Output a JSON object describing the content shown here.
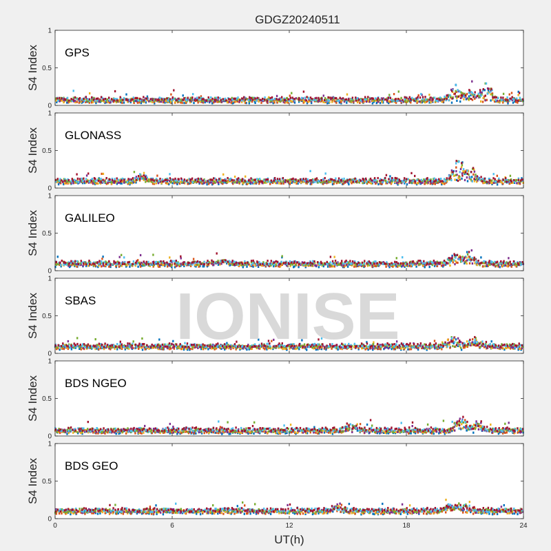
{
  "figure": {
    "title": "GDGZ20240511",
    "xlabel": "UT(h)",
    "ylabel": "S4 Index",
    "watermark": "IONISE",
    "background": "#f0f0f0",
    "axes_background": "#ffffff",
    "series_colors": [
      "#0072BD",
      "#D95319",
      "#EDB120",
      "#7E2F8E",
      "#77AC30",
      "#4DBEEE",
      "#A2142F"
    ]
  },
  "chart_data": [
    {
      "type": "scatter",
      "panel": "GPS",
      "xlim": [
        0,
        24
      ],
      "ylim": [
        0,
        1
      ],
      "xticks": [
        0,
        6,
        12,
        18,
        24
      ],
      "yticks": [
        0,
        0.5,
        1
      ],
      "ytick_labels": [
        "0",
        "0.5",
        "1"
      ],
      "grid": false,
      "baseline": 0.07,
      "activity": [
        {
          "x": 20.5,
          "peak": 0.28
        },
        {
          "x": 21.3,
          "peak": 0.22
        },
        {
          "x": 22.1,
          "peak": 0.3
        }
      ]
    },
    {
      "type": "scatter",
      "panel": "GLONASS",
      "xlim": [
        0,
        24
      ],
      "ylim": [
        0,
        1
      ],
      "xticks": [
        0,
        6,
        12,
        18,
        24
      ],
      "yticks": [
        0,
        0.5,
        1
      ],
      "ytick_labels": [
        "0",
        "0.5",
        "1"
      ],
      "grid": false,
      "baseline": 0.09,
      "activity": [
        {
          "x": 20.6,
          "peak": 0.42
        },
        {
          "x": 21.3,
          "peak": 0.3
        },
        {
          "x": 4.5,
          "peak": 0.19
        }
      ]
    },
    {
      "type": "scatter",
      "panel": "GALILEO",
      "xlim": [
        0,
        24
      ],
      "ylim": [
        0,
        1
      ],
      "xticks": [
        0,
        6,
        12,
        18,
        24
      ],
      "yticks": [
        0,
        0.5,
        1
      ],
      "ytick_labels": [
        "0",
        "0.5",
        "1"
      ],
      "grid": false,
      "baseline": 0.09,
      "activity": [
        {
          "x": 20.5,
          "peak": 0.24
        },
        {
          "x": 21.2,
          "peak": 0.23
        },
        {
          "x": 8.5,
          "peak": 0.16
        }
      ]
    },
    {
      "type": "scatter",
      "panel": "SBAS",
      "xlim": [
        0,
        24
      ],
      "ylim": [
        0,
        1
      ],
      "xticks": [
        0,
        6,
        12,
        18,
        24
      ],
      "yticks": [
        0,
        0.5,
        1
      ],
      "ytick_labels": [
        "0",
        "0.5",
        "1"
      ],
      "grid": false,
      "baseline": 0.09,
      "activity": [
        {
          "x": 20.4,
          "peak": 0.27
        },
        {
          "x": 21.5,
          "peak": 0.2
        }
      ]
    },
    {
      "type": "scatter",
      "panel": "BDS NGEO",
      "xlim": [
        0,
        24
      ],
      "ylim": [
        0,
        1
      ],
      "xticks": [
        0,
        6,
        12,
        18,
        24
      ],
      "yticks": [
        0,
        0.5,
        1
      ],
      "ytick_labels": [
        "0",
        "0.5",
        "1"
      ],
      "grid": false,
      "baseline": 0.07,
      "activity": [
        {
          "x": 20.8,
          "peak": 0.28
        },
        {
          "x": 21.7,
          "peak": 0.2
        },
        {
          "x": 15.2,
          "peak": 0.17
        }
      ]
    },
    {
      "type": "scatter",
      "panel": "BDS GEO",
      "xlim": [
        0,
        24
      ],
      "ylim": [
        0,
        1
      ],
      "xticks": [
        0,
        6,
        12,
        18,
        24
      ],
      "yticks": [
        0,
        0.5,
        1
      ],
      "ytick_labels": [
        "0",
        "0.5",
        "1"
      ],
      "grid": false,
      "baseline": 0.1,
      "activity": [
        {
          "x": 20.3,
          "peak": 0.25
        },
        {
          "x": 21.0,
          "peak": 0.2
        },
        {
          "x": 14.5,
          "peak": 0.2
        }
      ]
    }
  ]
}
